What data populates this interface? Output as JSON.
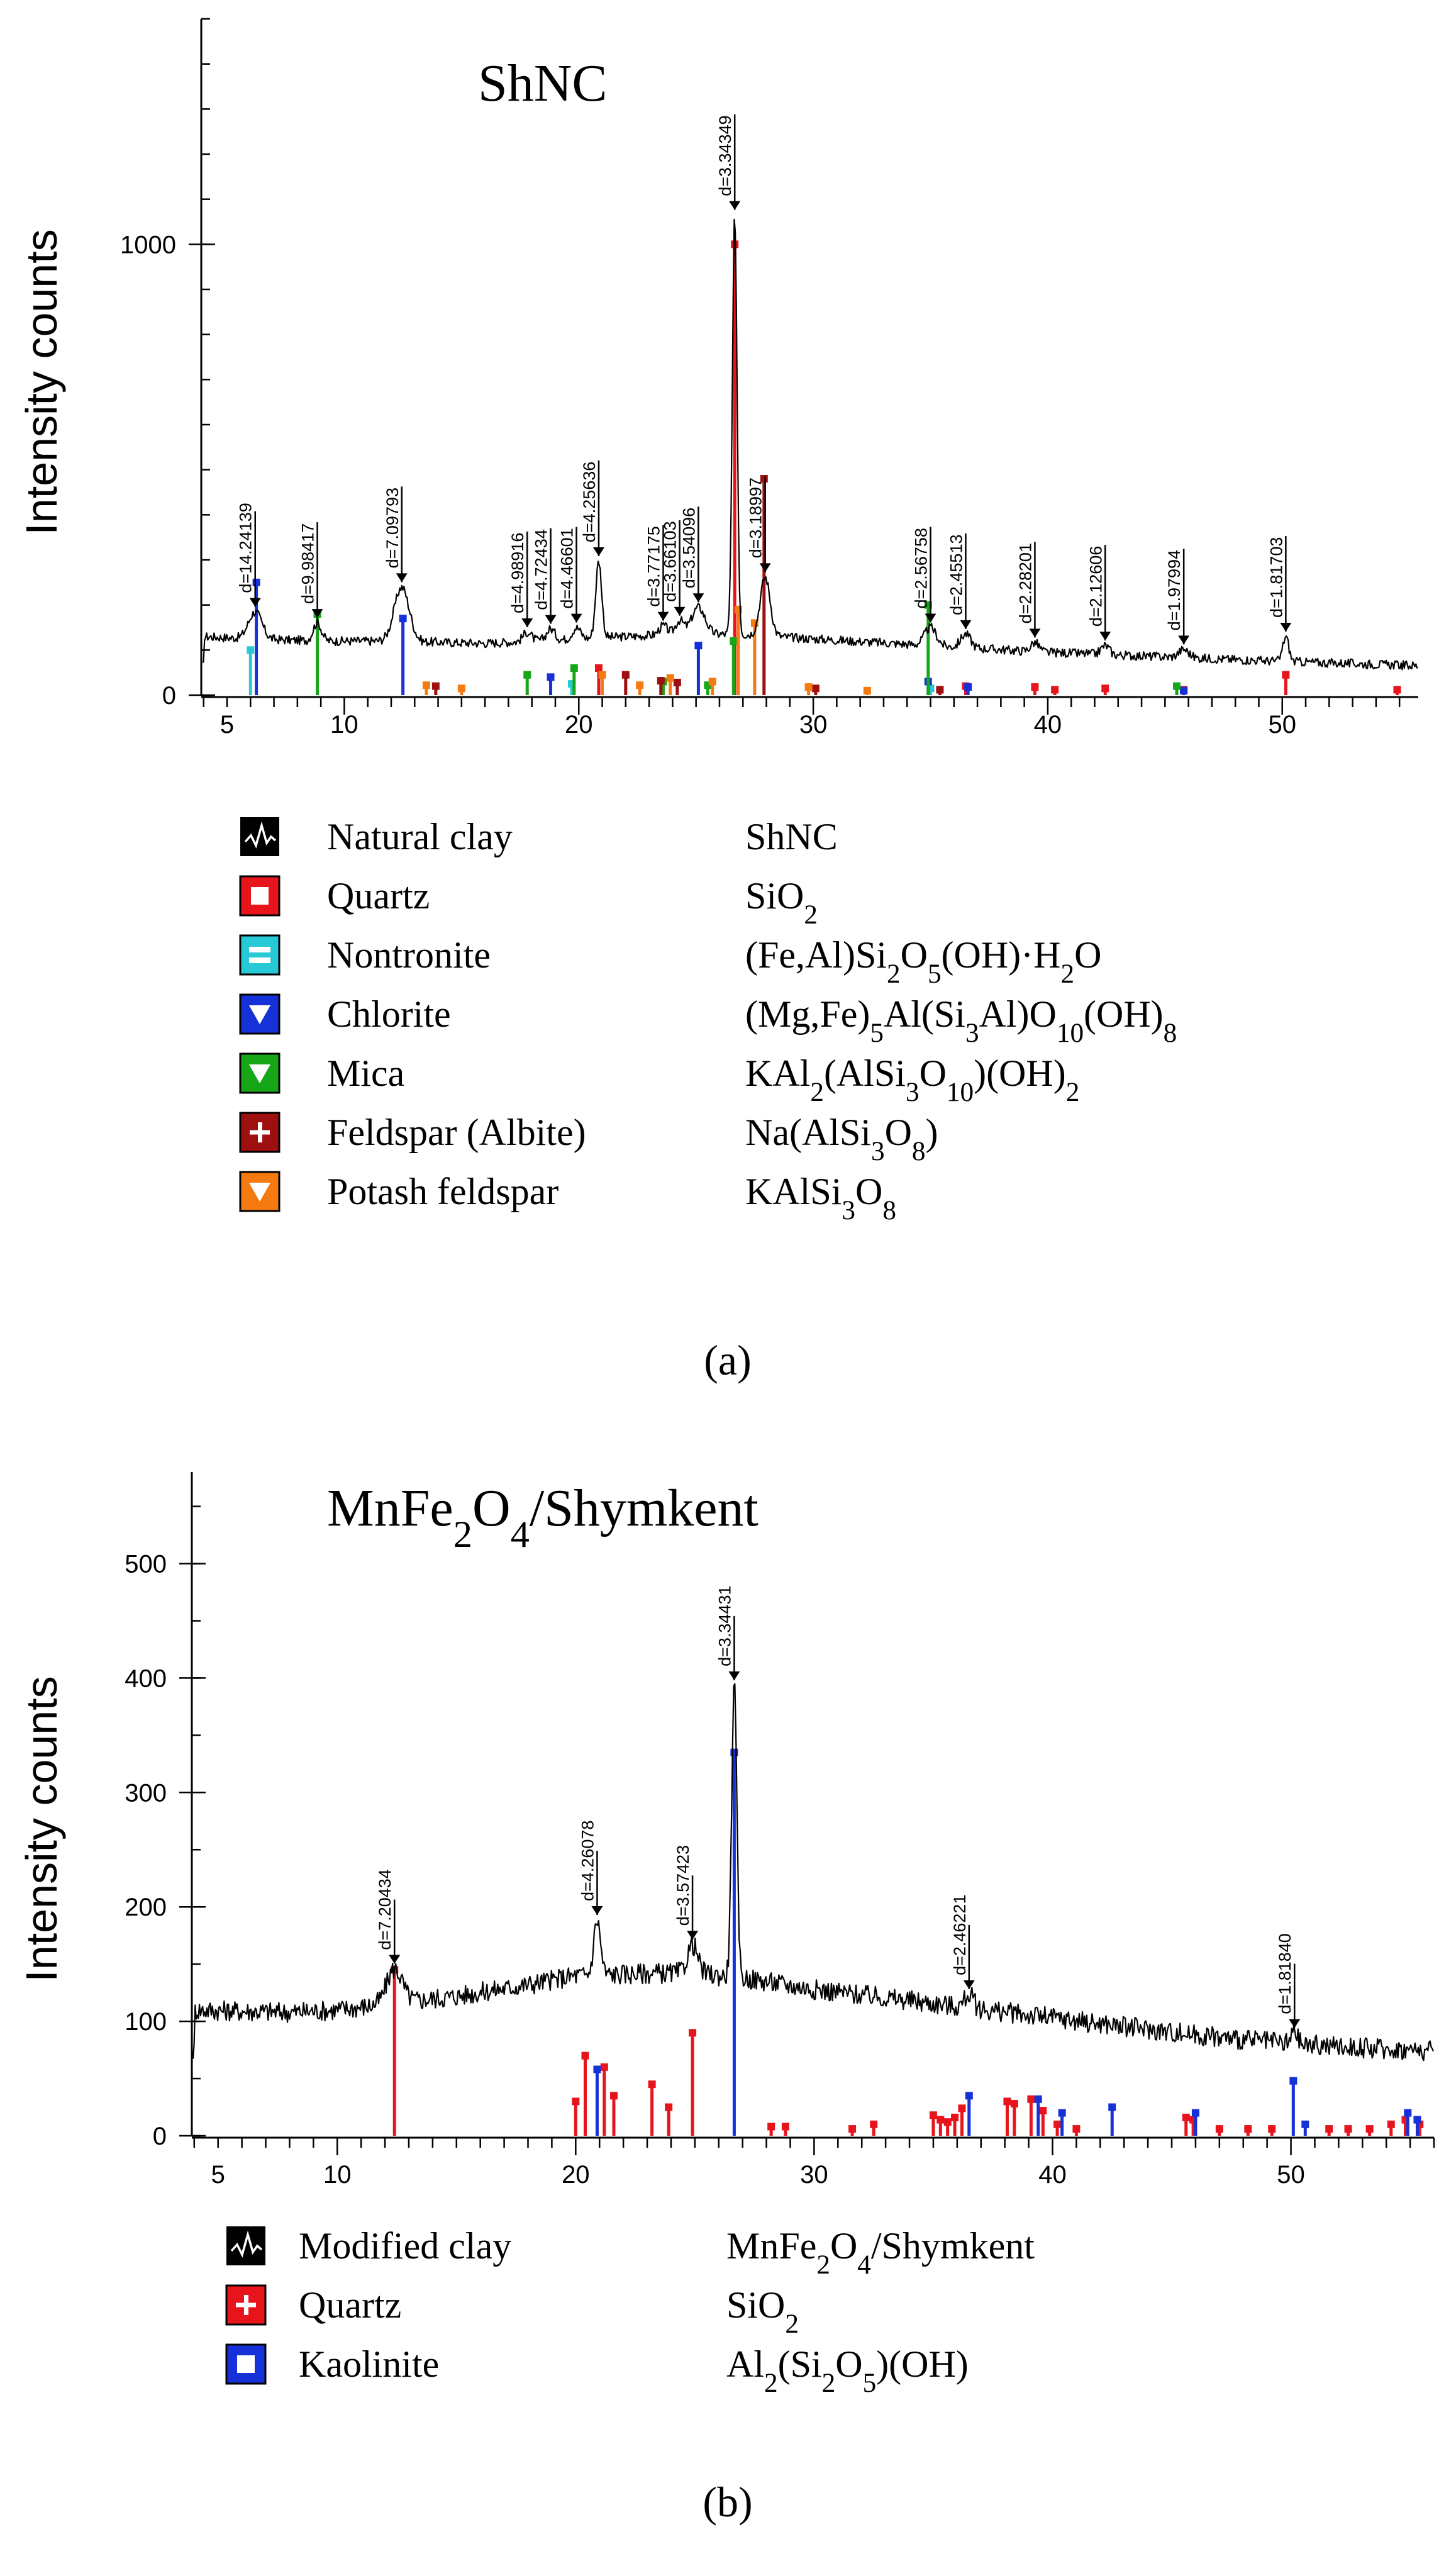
{
  "chart_data": [
    {
      "type": "line",
      "panel_label": "(a)",
      "title": "ShNC",
      "ylabel": "Intensity counts",
      "xlabel": "",
      "xlim": [
        4,
        56
      ],
      "ylim": [
        0,
        1500
      ],
      "x_ticks": [
        5,
        10,
        20,
        30,
        40,
        50
      ],
      "y_ticks": [
        0,
        1000
      ],
      "trace": {
        "name": "Natural clay",
        "background": [
          [
            4,
            130
          ],
          [
            6,
            125
          ],
          [
            9,
            120
          ],
          [
            12,
            120
          ],
          [
            16,
            115
          ],
          [
            20,
            125
          ],
          [
            24,
            135
          ],
          [
            27,
            135
          ],
          [
            30,
            125
          ],
          [
            35,
            110
          ],
          [
            40,
            95
          ],
          [
            45,
            85
          ],
          [
            50,
            75
          ],
          [
            56,
            65
          ]
        ],
        "peaks": [
          [
            6.2,
            60,
            0.4
          ],
          [
            8.85,
            40,
            0.25
          ],
          [
            12.45,
            120,
            0.45
          ],
          [
            17.8,
            20,
            0.25
          ],
          [
            18.8,
            25,
            0.25
          ],
          [
            19.9,
            25,
            0.25
          ],
          [
            20.85,
            170,
            0.18
          ],
          [
            23.6,
            20,
            0.25
          ],
          [
            24.3,
            30,
            0.25
          ],
          [
            25.1,
            60,
            0.4
          ],
          [
            26.65,
            930,
            0.14
          ],
          [
            27.95,
            130,
            0.3
          ],
          [
            35.0,
            40,
            0.35
          ],
          [
            36.5,
            30,
            0.3
          ],
          [
            39.45,
            20,
            0.25
          ],
          [
            42.45,
            20,
            0.25
          ],
          [
            45.8,
            18,
            0.3
          ],
          [
            50.15,
            55,
            0.18
          ]
        ]
      },
      "peak_labels": [
        {
          "x": 6.2,
          "label": "d=14.24139"
        },
        {
          "x": 8.85,
          "label": "d=9.98417"
        },
        {
          "x": 12.45,
          "label": "d=7.09793"
        },
        {
          "x": 17.8,
          "label": "d=4.98916"
        },
        {
          "x": 18.8,
          "label": "d=4.72434"
        },
        {
          "x": 19.9,
          "label": "d=4.46601"
        },
        {
          "x": 20.85,
          "label": "d=4.25636"
        },
        {
          "x": 23.6,
          "label": "d=3.77175"
        },
        {
          "x": 24.3,
          "label": "d=3.66103"
        },
        {
          "x": 25.1,
          "label": "d=3.54096"
        },
        {
          "x": 26.65,
          "label": "d=3.34349"
        },
        {
          "x": 27.95,
          "label": "d=3.18997"
        },
        {
          "x": 35.0,
          "label": "d=2.56758"
        },
        {
          "x": 36.5,
          "label": "d=2.45513"
        },
        {
          "x": 39.45,
          "label": "d=2.28201"
        },
        {
          "x": 42.45,
          "label": "d=2.12606"
        },
        {
          "x": 45.8,
          "label": "d=1.97994"
        },
        {
          "x": 50.15,
          "label": "d=1.81703"
        }
      ],
      "phase_sticks": [
        {
          "name": "Quartz",
          "color": "#e8141b",
          "sticks": [
            [
              20.85,
              60
            ],
            [
              26.65,
              1000
            ],
            [
              36.5,
              20
            ],
            [
              39.45,
              18
            ],
            [
              40.3,
              12
            ],
            [
              42.45,
              15
            ],
            [
              45.8,
              12
            ],
            [
              50.15,
              45
            ],
            [
              54.9,
              12
            ]
          ]
        },
        {
          "name": "Nontronite",
          "color": "#27c9d6",
          "sticks": [
            [
              6.0,
              100
            ],
            [
              19.7,
              25
            ],
            [
              35.0,
              15
            ]
          ]
        },
        {
          "name": "Chlorite",
          "color": "#1631d8",
          "sticks": [
            [
              6.25,
              250
            ],
            [
              12.5,
              170
            ],
            [
              18.8,
              40
            ],
            [
              25.1,
              110
            ],
            [
              34.9,
              30
            ],
            [
              36.6,
              18
            ],
            [
              45.8,
              10
            ]
          ]
        },
        {
          "name": "Mica",
          "color": "#17a617",
          "sticks": [
            [
              8.85,
              180
            ],
            [
              17.8,
              45
            ],
            [
              19.8,
              60
            ],
            [
              23.6,
              30
            ],
            [
              25.5,
              22
            ],
            [
              26.6,
              120
            ],
            [
              34.9,
              200
            ],
            [
              45.5,
              20
            ]
          ]
        },
        {
          "name": "Feldspar (Albite)",
          "color": "#9e1010",
          "sticks": [
            [
              13.9,
              20
            ],
            [
              22.0,
              45
            ],
            [
              23.5,
              32
            ],
            [
              24.2,
              28
            ],
            [
              27.9,
              480
            ],
            [
              30.1,
              15
            ],
            [
              35.4,
              12
            ]
          ]
        },
        {
          "name": "Potash feldspar",
          "color": "#f57a0f",
          "sticks": [
            [
              13.5,
              22
            ],
            [
              15.0,
              15
            ],
            [
              21.0,
              45
            ],
            [
              22.6,
              22
            ],
            [
              23.9,
              38
            ],
            [
              25.7,
              30
            ],
            [
              26.8,
              190
            ],
            [
              27.5,
              160
            ],
            [
              29.8,
              18
            ],
            [
              32.3,
              10
            ]
          ]
        }
      ],
      "legend": [
        {
          "icon": "waveform-icon",
          "name": "Natural clay",
          "formula": [
            [
              "ShNC"
            ]
          ]
        },
        {
          "icon": "square-icon",
          "color": "#e8141b",
          "name": "Quartz",
          "formula": [
            [
              "SiO"
            ],
            [
              "2",
              "sub"
            ]
          ]
        },
        {
          "icon": "equals-icon",
          "color": "#27c9d6",
          "name": "Nontronite",
          "formula": [
            [
              "(Fe,Al)Si"
            ],
            [
              "2",
              "sub"
            ],
            [
              "O"
            ],
            [
              "5",
              "sub"
            ],
            [
              "(OH)·H"
            ],
            [
              "2",
              "sub"
            ],
            [
              "O"
            ]
          ]
        },
        {
          "icon": "triangle-down-icon",
          "color": "#1631d8",
          "name": "Chlorite",
          "formula": [
            [
              "(Mg,Fe)"
            ],
            [
              "5",
              "sub"
            ],
            [
              "Al(Si"
            ],
            [
              "3",
              "sub"
            ],
            [
              "Al)O"
            ],
            [
              "10",
              "sub"
            ],
            [
              "(OH)"
            ],
            [
              "8",
              "sub"
            ]
          ]
        },
        {
          "icon": "triangle-down-icon",
          "color": "#17a617",
          "name": "Mica",
          "formula": [
            [
              "KAl"
            ],
            [
              "2",
              "sub"
            ],
            [
              "(AlSi"
            ],
            [
              "3",
              "sub"
            ],
            [
              "O"
            ],
            [
              "10",
              "sub"
            ],
            [
              ")(OH)"
            ],
            [
              "2",
              "sub"
            ]
          ]
        },
        {
          "icon": "plus-icon",
          "color": "#9e1010",
          "name": "Feldspar (Albite)",
          "formula": [
            [
              "Na(AlSi"
            ],
            [
              "3",
              "sub"
            ],
            [
              "O"
            ],
            [
              "8",
              "sub"
            ],
            [
              ")"
            ]
          ]
        },
        {
          "icon": "triangle-down-icon",
          "color": "#f57a0f",
          "name": "Potash feldspar",
          "formula": [
            [
              "KAlSi"
            ],
            [
              "3",
              "sub"
            ],
            [
              "O"
            ],
            [
              "8",
              "sub"
            ]
          ]
        }
      ]
    },
    {
      "type": "line",
      "panel_label": "(b)",
      "title": [
        [
          "MnFe"
        ],
        [
          "2",
          "sub"
        ],
        [
          "O"
        ],
        [
          "4",
          "sub"
        ],
        [
          "/Shymkent"
        ]
      ],
      "ylabel": "Intensity counts",
      "xlabel": "",
      "xlim": [
        4,
        56
      ],
      "ylim": [
        0,
        580
      ],
      "x_ticks": [
        5,
        10,
        20,
        30,
        40,
        50
      ],
      "y_ticks": [
        0,
        100,
        200,
        300,
        400,
        500
      ],
      "trace": {
        "name": "Modified clay",
        "background": [
          [
            4,
            110
          ],
          [
            8,
            108
          ],
          [
            10,
            110
          ],
          [
            12,
            115
          ],
          [
            15,
            122
          ],
          [
            18,
            132
          ],
          [
            20,
            140
          ],
          [
            23,
            142
          ],
          [
            25,
            142
          ],
          [
            27,
            138
          ],
          [
            30,
            128
          ],
          [
            34,
            118
          ],
          [
            38,
            108
          ],
          [
            42,
            98
          ],
          [
            46,
            88
          ],
          [
            50,
            80
          ],
          [
            56,
            74
          ]
        ],
        "peaks": [
          [
            12.4,
            30,
            0.45
          ],
          [
            20.9,
            48,
            0.2
          ],
          [
            24.9,
            25,
            0.3
          ],
          [
            26.65,
            255,
            0.15
          ],
          [
            36.5,
            12,
            0.25
          ],
          [
            50.15,
            10,
            0.2
          ]
        ]
      },
      "peak_labels": [
        {
          "x": 12.4,
          "label": "d=7.20434"
        },
        {
          "x": 20.9,
          "label": "d=4.26078"
        },
        {
          "x": 24.9,
          "label": "d=3.57423"
        },
        {
          "x": 26.65,
          "label": "d=3.34431"
        },
        {
          "x": 36.5,
          "label": "d=2.46221"
        },
        {
          "x": 50.15,
          "label": "d=1.81840"
        }
      ],
      "phase_sticks": [
        {
          "name": "Quartz",
          "color": "#e8141b",
          "sticks": [
            [
              12.4,
              145
            ],
            [
              20.0,
              30
            ],
            [
              20.4,
              70
            ],
            [
              21.2,
              60
            ],
            [
              21.6,
              35
            ],
            [
              23.2,
              45
            ],
            [
              23.9,
              25
            ],
            [
              24.9,
              90
            ],
            [
              28.2,
              8
            ],
            [
              28.8,
              8
            ],
            [
              31.6,
              6
            ],
            [
              32.5,
              10
            ],
            [
              35.0,
              18
            ],
            [
              35.3,
              14
            ],
            [
              35.6,
              12
            ],
            [
              35.9,
              16
            ],
            [
              36.2,
              24
            ],
            [
              38.1,
              30
            ],
            [
              38.4,
              28
            ],
            [
              39.1,
              32
            ],
            [
              39.6,
              22
            ],
            [
              40.2,
              10
            ],
            [
              41.0,
              6
            ],
            [
              45.6,
              16
            ],
            [
              45.9,
              14
            ],
            [
              47.0,
              6
            ],
            [
              48.2,
              6
            ],
            [
              49.2,
              6
            ],
            [
              51.6,
              6
            ],
            [
              52.4,
              6
            ],
            [
              53.3,
              6
            ],
            [
              54.2,
              10
            ],
            [
              54.8,
              14
            ],
            [
              55.4,
              10
            ]
          ]
        },
        {
          "name": "Kaolinite",
          "color": "#1631d8",
          "sticks": [
            [
              20.9,
              58
            ],
            [
              26.65,
              335
            ],
            [
              36.5,
              35
            ],
            [
              39.4,
              32
            ],
            [
              40.4,
              20
            ],
            [
              42.5,
              25
            ],
            [
              46.0,
              20
            ],
            [
              50.1,
              48
            ],
            [
              50.6,
              10
            ],
            [
              54.9,
              20
            ],
            [
              55.3,
              14
            ]
          ]
        }
      ],
      "legend": [
        {
          "icon": "waveform-icon",
          "name": "Modified clay",
          "formula": [
            [
              "MnFe"
            ],
            [
              "2",
              "sub"
            ],
            [
              "O"
            ],
            [
              "4",
              "sub"
            ],
            [
              "/Shymkent"
            ]
          ]
        },
        {
          "icon": "plus-icon",
          "color": "#e8141b",
          "name": "Quartz",
          "formula": [
            [
              "SiO"
            ],
            [
              "2",
              "sub"
            ]
          ]
        },
        {
          "icon": "square-icon",
          "color": "#1631d8",
          "name": "Kaolinite",
          "formula": [
            [
              "Al"
            ],
            [
              "2",
              "sub"
            ],
            [
              "(Si"
            ],
            [
              "2",
              "sub"
            ],
            [
              "O"
            ],
            [
              "5",
              "sub"
            ],
            [
              ")(OH)"
            ]
          ]
        }
      ]
    }
  ]
}
